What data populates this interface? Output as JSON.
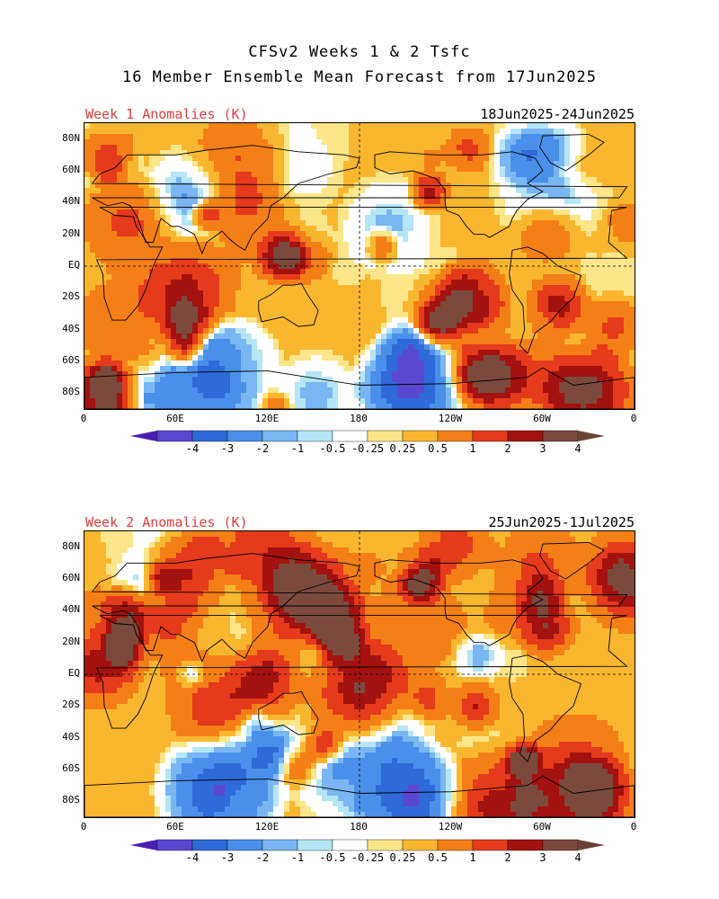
{
  "title_line1": "CFSv2 Weeks 1 & 2 Tsfc",
  "title_line2": "16 Member Ensemble Mean Forecast from 17Jun2025",
  "panels": [
    {
      "label": "Week 1 Anomalies (K)",
      "dates": "18Jun2025-24Jun2025"
    },
    {
      "label": "Week 2 Anomalies (K)",
      "dates": "25Jun2025-1Jul2025"
    }
  ],
  "lat_ticks": [
    "80N",
    "60N",
    "40N",
    "20N",
    "EQ",
    "20S",
    "40S",
    "60S",
    "80S"
  ],
  "lon_ticks": [
    "0",
    "60E",
    "120E",
    "180",
    "120W",
    "60W",
    "0"
  ],
  "colorbar": {
    "labels": [
      "-4",
      "-3",
      "-2",
      "-1",
      "-0.5",
      "-0.25",
      "0.25",
      "0.5",
      "1",
      "2",
      "3",
      "4"
    ],
    "colors": [
      "#4a1fb0",
      "#5a48d0",
      "#2e6ad8",
      "#4a90ea",
      "#7ab6f2",
      "#b4e6f6",
      "#ffffff",
      "#fde68a",
      "#f9b730",
      "#f57f17",
      "#e53a1c",
      "#a3120f",
      "#7b4a3c",
      "#6b4336"
    ]
  },
  "units": "K"
}
